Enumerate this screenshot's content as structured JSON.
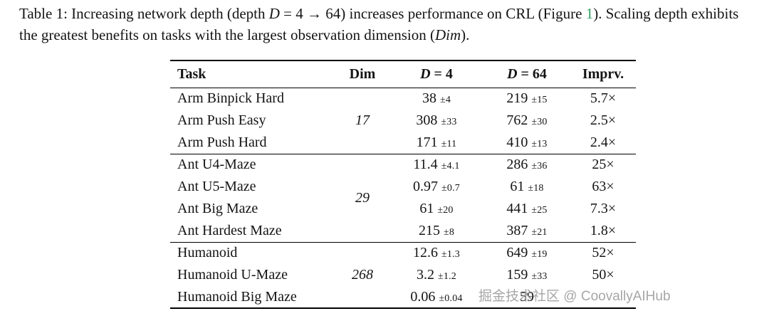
{
  "caption": {
    "seg1": "Table 1:  Increasing network depth (depth ",
    "var_d": "D",
    "seg2": " = 4 → 64) increases performance on CRL (Figure ",
    "fig_ref": "1",
    "seg3": "). Scaling depth exhibits the greatest benefits on tasks with the largest observation dimension (",
    "var_dim": "Dim",
    "seg4": ")."
  },
  "table": {
    "header": {
      "task": "Task",
      "dim": "Dim",
      "d4_var": "D",
      "d4_rest": " = 4",
      "d64_var": "D",
      "d64_rest": " = 64",
      "imprv": "Imprv."
    },
    "groups": [
      {
        "dim": "17",
        "rows": [
          {
            "task": "Arm Binpick Hard",
            "d4": "38",
            "d4_pm": "±4",
            "d64": "219",
            "d64_pm": "±15",
            "imprv": "5.7×"
          },
          {
            "task": "Arm Push Easy",
            "d4": "308",
            "d4_pm": "±33",
            "d64": "762",
            "d64_pm": "±30",
            "imprv": "2.5×"
          },
          {
            "task": "Arm Push Hard",
            "d4": "171",
            "d4_pm": "±11",
            "d64": "410",
            "d64_pm": "±13",
            "imprv": "2.4×"
          }
        ]
      },
      {
        "dim": "29",
        "rows": [
          {
            "task": "Ant U4-Maze",
            "d4": "11.4",
            "d4_pm": "±4.1",
            "d64": "286",
            "d64_pm": "±36",
            "imprv": "25×"
          },
          {
            "task": "Ant U5-Maze",
            "d4": "0.97",
            "d4_pm": "±0.7",
            "d64": "61",
            "d64_pm": "±18",
            "imprv": "63×"
          },
          {
            "task": "Ant Big Maze",
            "d4": "61",
            "d4_pm": "±20",
            "d64": "441",
            "d64_pm": "±25",
            "imprv": "7.3×"
          },
          {
            "task": "Ant Hardest Maze",
            "d4": "215",
            "d4_pm": "±8",
            "d64": "387",
            "d64_pm": "±21",
            "imprv": "1.8×"
          }
        ]
      },
      {
        "dim": "268",
        "rows": [
          {
            "task": "Humanoid",
            "d4": "12.6",
            "d4_pm": "±1.3",
            "d64": "649",
            "d64_pm": "±19",
            "imprv": "52×"
          },
          {
            "task": "Humanoid U-Maze",
            "d4": "3.2",
            "d4_pm": "±1.2",
            "d64": "159",
            "d64_pm": "±33",
            "imprv": "50×"
          },
          {
            "task": "Humanoid Big Maze",
            "d4": "0.06",
            "d4_pm": "±0.04",
            "d64": "59",
            "d64_pm": "",
            "imprv": ""
          }
        ]
      }
    ]
  },
  "watermark": {
    "text": "掘金技术社区 @ CoovallyAIHub"
  },
  "colors": {
    "figure_link_green": "#2e9e62",
    "watermark_gray": "#a6a6a6"
  }
}
